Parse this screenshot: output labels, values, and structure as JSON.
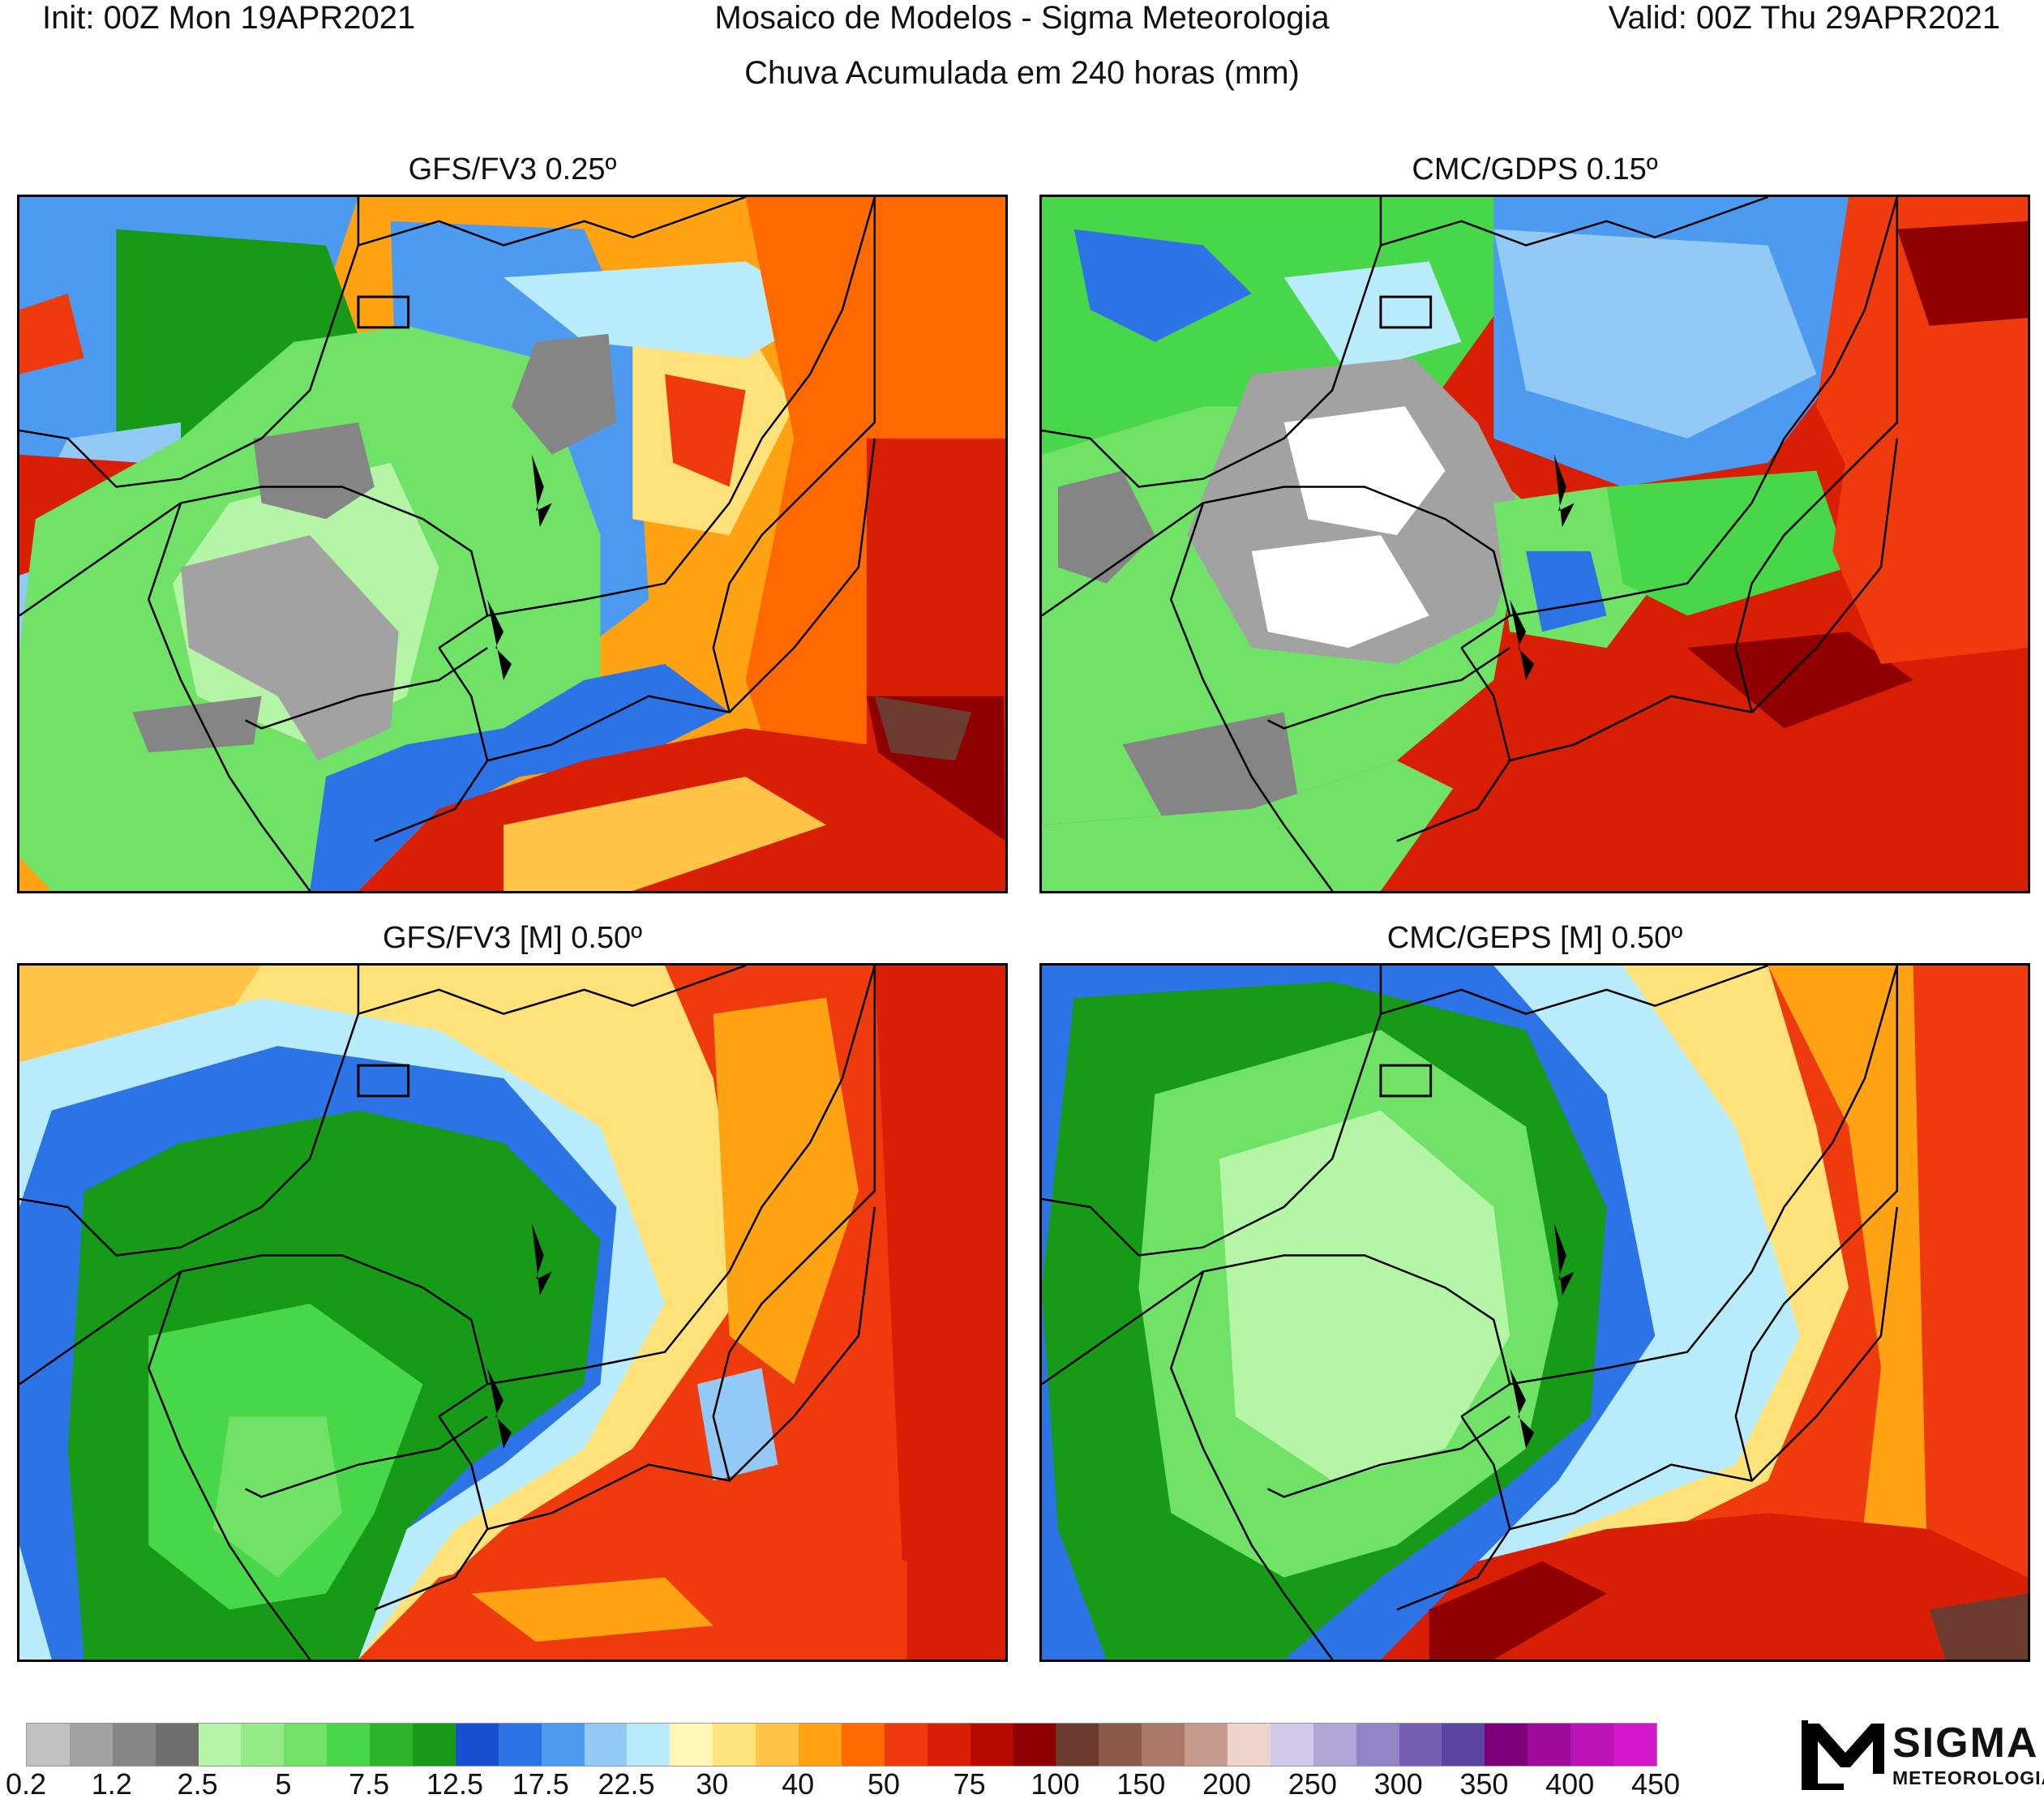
{
  "header": {
    "init": "Init: 00Z Mon 19APR2021",
    "title": "Mosaico de Modelos - Sigma Meteorologia",
    "valid": "Valid: 00Z Thu 29APR2021",
    "subtitle": "Chuva Acumulada em 240 horas (mm)"
  },
  "panels": [
    {
      "title": "GFS/FV3 0.25º"
    },
    {
      "title": "CMC/GDPS 0.15º"
    },
    {
      "title": "GFS/FV3 [M] 0.50º"
    },
    {
      "title": "CMC/GEPS [M] 0.50º"
    }
  ],
  "legend": {
    "colors": [
      "#c0c0c0",
      "#a2a2a2",
      "#858585",
      "#6e6e6e",
      "#b4f5a6",
      "#93ec85",
      "#6fe267",
      "#48d748",
      "#2ab52a",
      "#179a17",
      "#1650d0",
      "#2c73e6",
      "#4d9bf0",
      "#93c9f5",
      "#b8ecfa",
      "#fff7b4",
      "#ffe37a",
      "#ffc446",
      "#ffa214",
      "#ff6a00",
      "#ef3a0e",
      "#d81e05",
      "#b70b02",
      "#8f0000",
      "#6a3b2e",
      "#8a5a4c",
      "#a9786a",
      "#c69b8e",
      "#efd4cc",
      "#d2c8ea",
      "#b1a6d8",
      "#9484c7",
      "#775fb5",
      "#5d44a0",
      "#7d007a",
      "#9b0a98",
      "#bd12b8",
      "#d317cd"
    ],
    "labels": [
      "0.2",
      "1.2",
      "2.5",
      "5",
      "7.5",
      "12.5",
      "17.5",
      "22.5",
      "30",
      "40",
      "50",
      "75",
      "100",
      "150",
      "200",
      "250",
      "300",
      "350",
      "400",
      "450"
    ]
  },
  "logo": {
    "word": "SIGMA",
    "sub": "METEOROLOGIA"
  }
}
